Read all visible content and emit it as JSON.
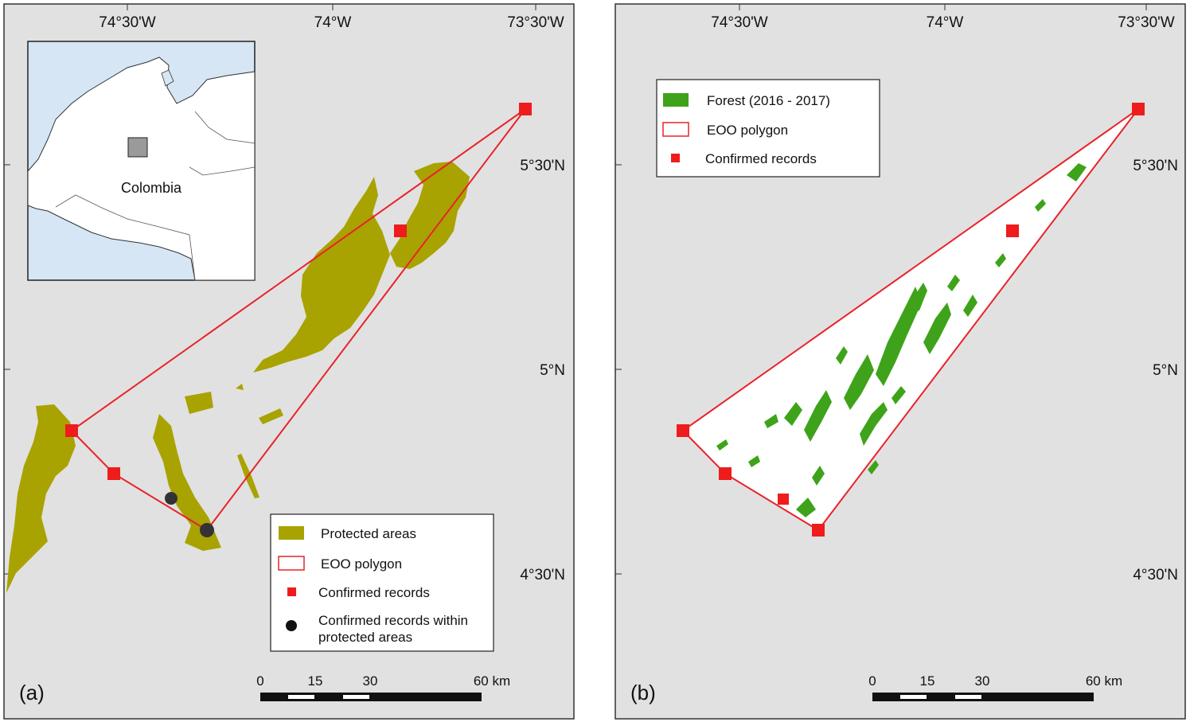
{
  "panel_a": {
    "label": "(a)",
    "lon_ticks": [
      "74°30'W",
      "74°W",
      "73°30'W"
    ],
    "lat_ticks": [
      "5°30'N",
      "5°N",
      "4°30'N"
    ],
    "inset_country": "Colombia",
    "legend": {
      "protected": "Protected areas",
      "eoo": "EOO polygon",
      "records": "Confirmed records",
      "records_protected_1": "Confirmed records within",
      "records_protected_2": "protected areas"
    },
    "scale": {
      "t0": "0",
      "t1": "15",
      "t2": "30",
      "t3": "60 km"
    }
  },
  "panel_b": {
    "label": "(b)",
    "lon_ticks": [
      "74°30'W",
      "74°W",
      "73°30'W"
    ],
    "lat_ticks": [
      "5°30'N",
      "5°N",
      "4°30'N"
    ],
    "legend": {
      "forest": "Forest (2016 - 2017)",
      "eoo": "EOO polygon",
      "records": "Confirmed records"
    },
    "scale": {
      "t0": "0",
      "t1": "15",
      "t2": "30",
      "t3": "60 km"
    }
  },
  "colors": {
    "map_bg": "#e1e1e1",
    "protected": "#a8a300",
    "eoo": "#e8232a",
    "record": "#ee1c1c",
    "forest": "#3ea31a",
    "water": "#d6e6f5"
  }
}
